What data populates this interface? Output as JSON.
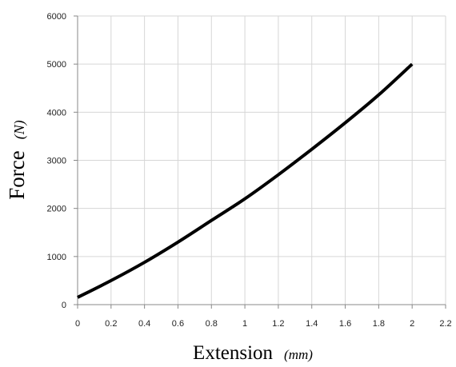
{
  "chart_data": {
    "type": "line",
    "title": "",
    "xlabel": {
      "text": "Extension",
      "unit": "(mm)"
    },
    "ylabel": {
      "text": "Force",
      "unit": "(N)"
    },
    "xlim": [
      0,
      2.2
    ],
    "ylim": [
      0,
      6000
    ],
    "x_ticks": [
      "0",
      "0.2",
      "0.4",
      "0.6",
      "0.8",
      "1",
      "1.2",
      "1.4",
      "1.6",
      "1.8",
      "2",
      "2.2"
    ],
    "y_ticks": [
      "0",
      "1000",
      "2000",
      "3000",
      "4000",
      "5000",
      "6000"
    ],
    "grid": true,
    "legend": false,
    "series": [
      {
        "color": "#000000",
        "x": [
          0,
          0.2,
          0.4,
          0.6,
          0.8,
          1.0,
          1.2,
          1.4,
          1.6,
          1.8,
          2.0
        ],
        "y": [
          150,
          500,
          880,
          1300,
          1750,
          2200,
          2700,
          3230,
          3780,
          4360,
          5000
        ]
      }
    ]
  },
  "colors": {
    "grid": "#d6d6d6",
    "axis": "#888888",
    "line": "#000000"
  }
}
